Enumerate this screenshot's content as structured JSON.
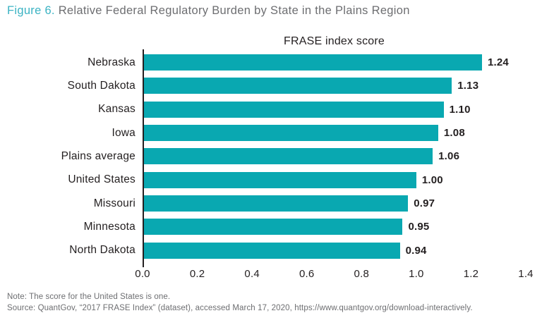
{
  "figure": {
    "label": "Figure 6.",
    "title": "Relative Federal Regulatory Burden by State in the Plains Region"
  },
  "chart_data": {
    "type": "bar",
    "orientation": "horizontal",
    "title": "FRASE index score",
    "categories": [
      "Nebraska",
      "South Dakota",
      "Kansas",
      "Iowa",
      "Plains average",
      "United States",
      "Missouri",
      "Minnesota",
      "North Dakota"
    ],
    "values": [
      1.24,
      1.13,
      1.1,
      1.08,
      1.06,
      1.0,
      0.97,
      0.95,
      0.94
    ],
    "value_labels": [
      "1.24",
      "1.13",
      "1.10",
      "1.08",
      "1.06",
      "1.00",
      "0.97",
      "0.95",
      "0.94"
    ],
    "x_ticks": [
      "0.0",
      "0.2",
      "0.4",
      "0.6",
      "0.8",
      "1.0",
      "1.2",
      "1.4"
    ],
    "xlim": [
      0,
      1.4
    ],
    "bar_color": "#09a8b1",
    "grid": false,
    "legend": "none"
  },
  "notes": {
    "note": "Note: The score for the United States is one.",
    "source": "Source: QuantGov, “2017 FRASE Index” (dataset), accessed March 17, 2020, https://www.quantgov.org/download-interactively."
  }
}
